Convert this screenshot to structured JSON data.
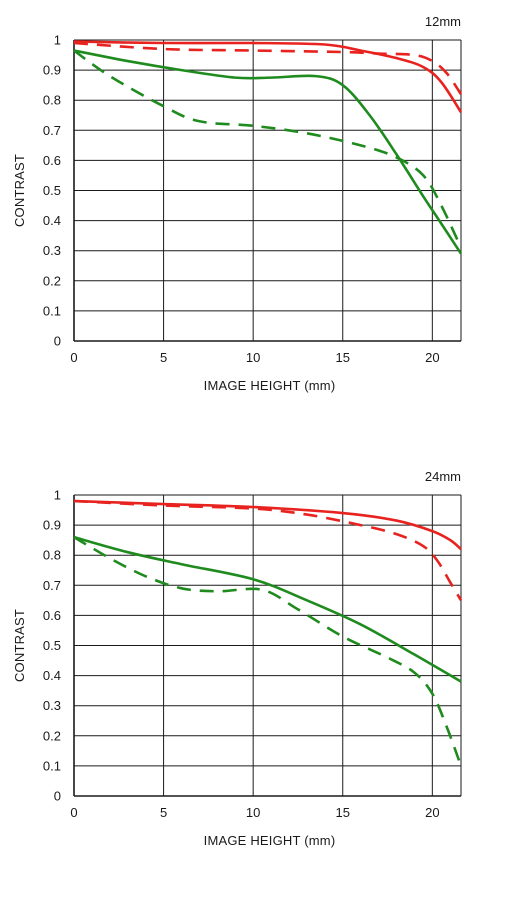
{
  "colors": {
    "sagittal": "#e8231f",
    "meridional": "#1f8b1f",
    "grid": "#1a1a1a",
    "text": "#1a1a1a"
  },
  "chart_data": [
    {
      "type": "line",
      "title": "12mm",
      "xlabel": "IMAGE HEIGHT (mm)",
      "ylabel": "CONTRAST",
      "xlim": [
        0,
        21.6
      ],
      "ylim": [
        0,
        1
      ],
      "xticks": [
        0,
        5,
        10,
        15,
        20
      ],
      "yticks": [
        0,
        0.1,
        0.2,
        0.3,
        0.4,
        0.5,
        0.6,
        0.7,
        0.8,
        0.9,
        1
      ],
      "ytick_labels": [
        "0",
        "0.1",
        "0.2",
        "0.3",
        "0.4",
        "0.5",
        "0.6",
        "0.7",
        "0.8",
        "0.9",
        "1"
      ],
      "grid": true,
      "series": [
        {
          "color": "red",
          "dashed": false,
          "x": [
            0,
            5,
            10,
            14,
            16,
            18,
            19.5,
            20.5,
            21.6
          ],
          "y": [
            0.995,
            0.99,
            0.99,
            0.985,
            0.965,
            0.94,
            0.91,
            0.86,
            0.76
          ]
        },
        {
          "color": "red",
          "dashed": true,
          "x": [
            0,
            5,
            10,
            15,
            17,
            19,
            20,
            20.8,
            21.6
          ],
          "y": [
            0.99,
            0.97,
            0.965,
            0.96,
            0.955,
            0.95,
            0.93,
            0.89,
            0.82
          ]
        },
        {
          "color": "green",
          "dashed": false,
          "x": [
            0,
            3,
            6,
            9,
            11,
            13.5,
            15,
            16.5,
            18,
            19.5,
            20.5,
            21.6
          ],
          "y": [
            0.965,
            0.93,
            0.9,
            0.875,
            0.875,
            0.88,
            0.85,
            0.75,
            0.62,
            0.48,
            0.39,
            0.29
          ]
        },
        {
          "color": "green",
          "dashed": true,
          "x": [
            0,
            2,
            5,
            7,
            10,
            13,
            16,
            18,
            19.5,
            20.5,
            21.6
          ],
          "y": [
            0.965,
            0.88,
            0.78,
            0.73,
            0.715,
            0.69,
            0.65,
            0.61,
            0.55,
            0.45,
            0.31
          ]
        }
      ]
    },
    {
      "type": "line",
      "title": "24mm",
      "xlabel": "IMAGE HEIGHT (mm)",
      "ylabel": "CONTRAST",
      "xlim": [
        0,
        21.6
      ],
      "ylim": [
        0,
        1
      ],
      "xticks": [
        0,
        5,
        10,
        15,
        20
      ],
      "yticks": [
        0,
        0.1,
        0.2,
        0.3,
        0.4,
        0.5,
        0.6,
        0.7,
        0.8,
        0.9,
        1
      ],
      "ytick_labels": [
        "0",
        "0.1",
        "0.2",
        "0.3",
        "0.4",
        "0.5",
        "0.6",
        "0.7",
        "0.8",
        "0.9",
        "1"
      ],
      "grid": true,
      "series": [
        {
          "color": "red",
          "dashed": false,
          "x": [
            0,
            5,
            10,
            15,
            18,
            20,
            21,
            21.6
          ],
          "y": [
            0.98,
            0.97,
            0.96,
            0.94,
            0.915,
            0.88,
            0.85,
            0.82
          ]
        },
        {
          "color": "red",
          "dashed": true,
          "x": [
            0,
            5,
            10,
            13,
            16,
            18,
            19.5,
            20.3,
            21,
            21.6
          ],
          "y": [
            0.98,
            0.965,
            0.955,
            0.935,
            0.9,
            0.87,
            0.83,
            0.78,
            0.71,
            0.65
          ]
        },
        {
          "color": "green",
          "dashed": false,
          "x": [
            0,
            3,
            6,
            10,
            13,
            16,
            19,
            21.6
          ],
          "y": [
            0.86,
            0.81,
            0.77,
            0.72,
            0.65,
            0.57,
            0.47,
            0.38
          ]
        },
        {
          "color": "green",
          "dashed": true,
          "x": [
            0,
            2,
            4,
            6,
            8,
            10.5,
            12.5,
            15,
            17.5,
            19,
            20,
            20.8,
            21.6
          ],
          "y": [
            0.86,
            0.79,
            0.73,
            0.69,
            0.68,
            0.685,
            0.62,
            0.53,
            0.46,
            0.41,
            0.34,
            0.23,
            0.1
          ]
        }
      ]
    }
  ]
}
